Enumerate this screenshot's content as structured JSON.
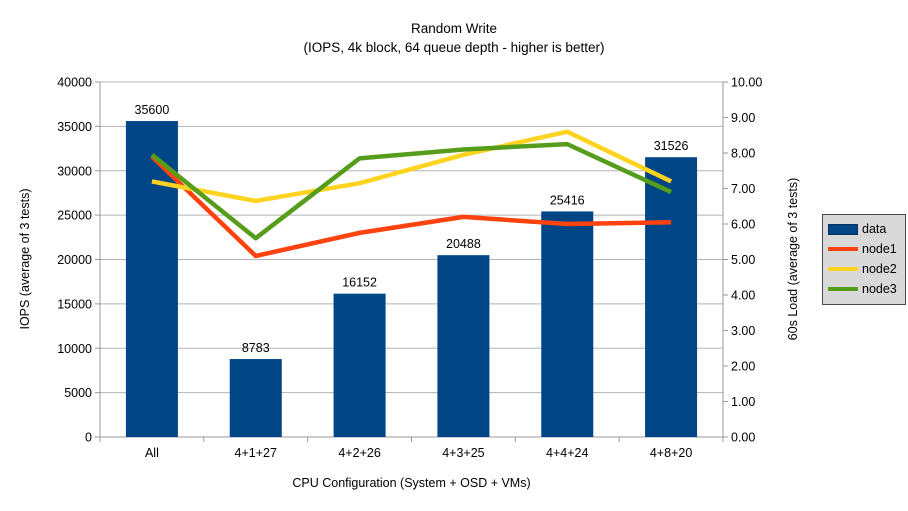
{
  "title": "Random Write",
  "subtitle": "(IOPS, 4k block, 64 queue depth - higher is better)",
  "chart_data": {
    "type": "bar",
    "categories": [
      "All",
      "4+1+27",
      "4+2+26",
      "4+3+25",
      "4+4+24",
      "4+8+20"
    ],
    "bar_series": {
      "name": "data",
      "axis": "left",
      "color": "#004586",
      "values": [
        35600,
        8783,
        16152,
        20488,
        25416,
        31526
      ]
    },
    "line_series": [
      {
        "name": "node1",
        "axis": "right",
        "color": "#ff420e",
        "values": [
          7.9,
          5.1,
          5.75,
          6.2,
          6.0,
          6.05
        ]
      },
      {
        "name": "node2",
        "axis": "right",
        "color": "#ffd320",
        "values": [
          7.2,
          6.65,
          7.15,
          7.95,
          8.6,
          7.2
        ]
      },
      {
        "name": "node3",
        "axis": "right",
        "color": "#579d1c",
        "values": [
          7.95,
          5.6,
          7.85,
          8.1,
          8.25,
          6.9
        ]
      }
    ],
    "left_axis": {
      "label": "IOPS (average of 3 tests)",
      "min": 0,
      "max": 40000,
      "tick_step": 5000,
      "ticks": [
        "0",
        "5000",
        "10000",
        "15000",
        "20000",
        "25000",
        "30000",
        "35000",
        "40000"
      ]
    },
    "right_axis": {
      "label": "60s Load (average of 3 tests)",
      "min": 0,
      "max": 10,
      "tick_step": 1,
      "ticks": [
        "0.00",
        "1.00",
        "2.00",
        "3.00",
        "4.00",
        "5.00",
        "6.00",
        "7.00",
        "8.00",
        "9.00",
        "10.00"
      ]
    },
    "xlabel": "CPU Configuration (System + OSD + VMs)",
    "grid": "horizontal",
    "colors": {
      "gridline": "#b3b3b3",
      "axis": "#999999",
      "text": "#000000",
      "legend_bg": "#d9d9d9"
    },
    "legend": {
      "position": "right",
      "entries": [
        "data",
        "node1",
        "node2",
        "node3"
      ]
    }
  }
}
